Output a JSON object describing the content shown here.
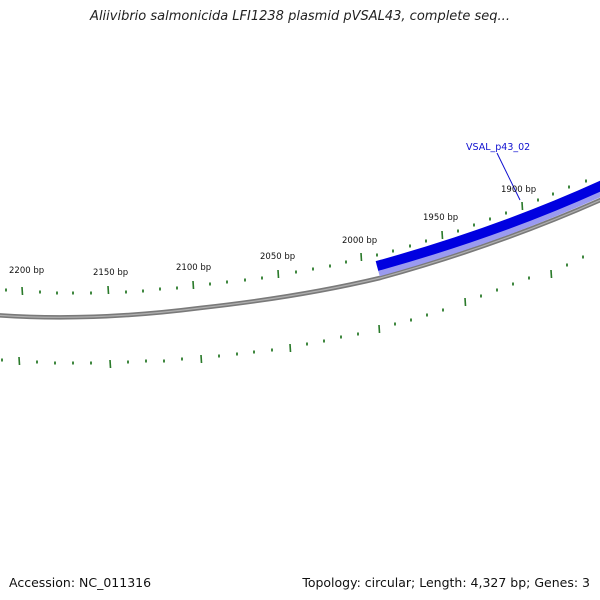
{
  "title": "Aliivibrio salmonicida LFI1238 plasmid pVSAL43, complete seq...",
  "footer": {
    "accession": "Accession: NC_011316",
    "summary": "Topology: circular; Length: 4,327 bp; Genes: 3"
  },
  "colors": {
    "backbone": "#808080",
    "gene": "#0000e0",
    "tick": "#2a7a2a",
    "gene_label": "#1010d0"
  },
  "genes": [
    {
      "name": "VSAL_p43_02",
      "start_bp": 1800,
      "end_bp": 2007
    }
  ],
  "ticks": {
    "labels": [
      "1900 bp",
      "1950 bp",
      "2000 bp",
      "2050 bp",
      "2100 bp",
      "2150 bp",
      "2200 bp"
    ]
  }
}
